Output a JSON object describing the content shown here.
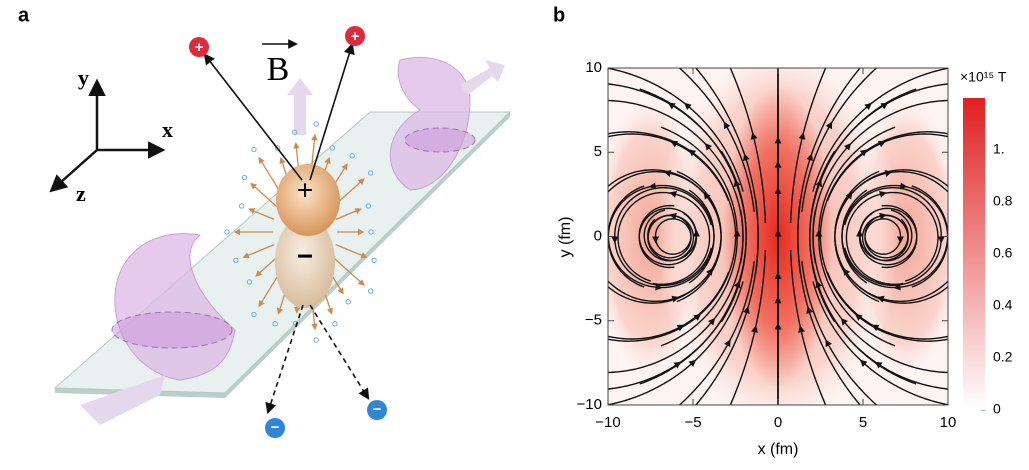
{
  "panel_a": {
    "label": "a",
    "axis_y": "y",
    "axis_x": "x",
    "axis_z": "z",
    "field": "B",
    "plus": "+",
    "minus": "−"
  },
  "chart_data": {
    "type": "streamplot",
    "panel_label": "b",
    "xlabel": "x (fm)",
    "ylabel": "y (fm)",
    "xlim": [
      -10,
      10
    ],
    "ylim": [
      -10,
      10
    ],
    "xticks": [
      {
        "value": -10,
        "label": "−10"
      },
      {
        "value": -5,
        "label": "−5"
      },
      0,
      5,
      10
    ],
    "yticks": [
      {
        "value": -10,
        "label": "−10"
      },
      {
        "value": -5,
        "label": "−5"
      },
      0,
      5,
      10
    ],
    "colorbar": {
      "label": "×10¹⁵ T",
      "lim": [
        0,
        1.2
      ],
      "color": "#e02020",
      "ticks": [
        0,
        0.2,
        0.4,
        0.6,
        0.8,
        {
          "value": 1,
          "label": "1."
        }
      ]
    }
  }
}
